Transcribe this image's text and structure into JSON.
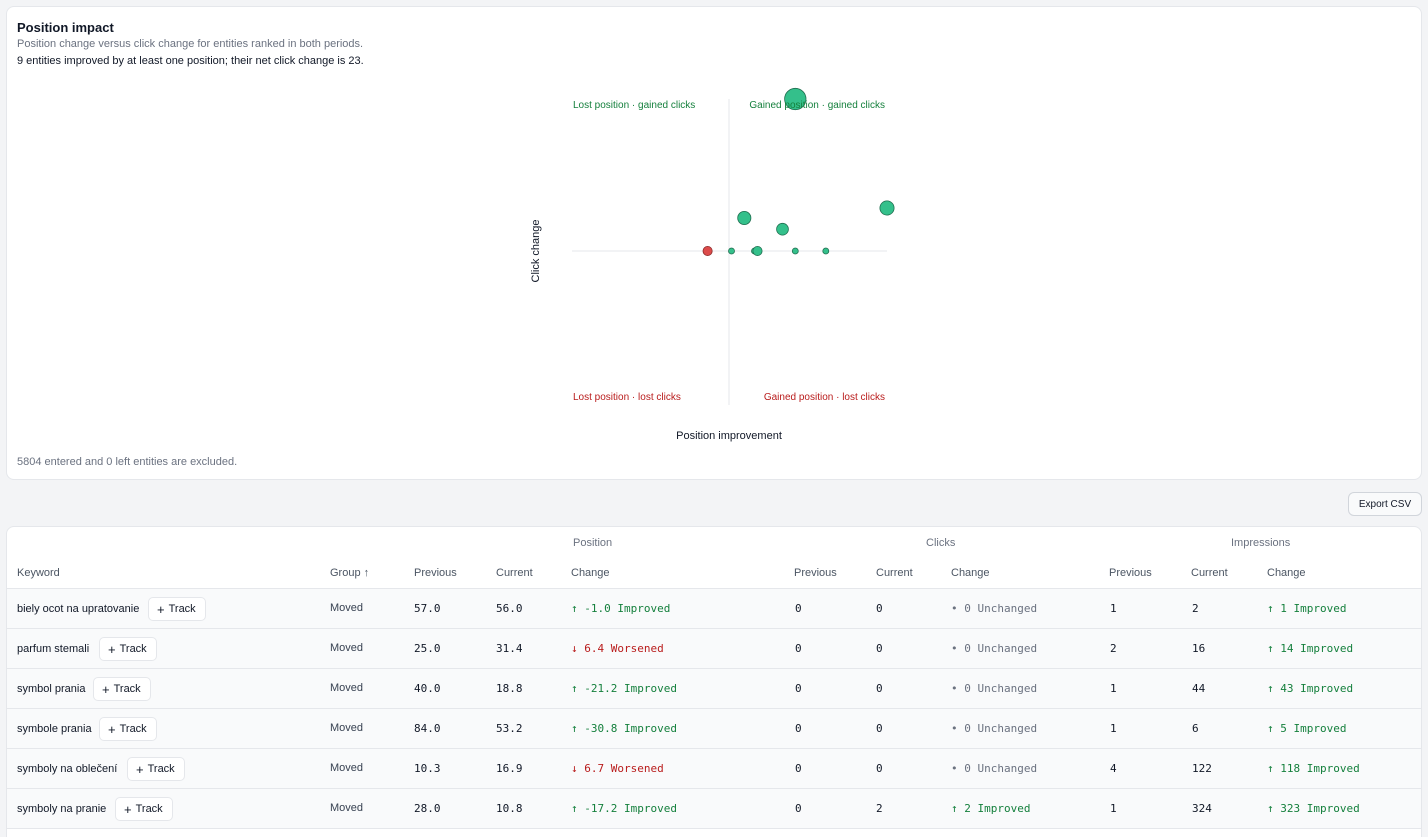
{
  "impact": {
    "title": "Position impact",
    "subtitle": "Position change versus click change for entities ranked in both periods.",
    "summary": "9 entities improved by at least one position; their net click change is 23.",
    "footnote": "5804 entered and 0 left entities are excluded.",
    "quadrants": {
      "top_left": "Lost position · gained clicks",
      "top_right": "Gained position · gained clicks",
      "bottom_left": "Lost position · lost clicks",
      "bottom_right": "Gained position · lost clicks"
    }
  },
  "colors": {
    "positive": "#34c08b",
    "negative": "#dc4b4b",
    "green_text": "#15803d",
    "red_text": "#b91c1c"
  },
  "chart_data": {
    "type": "scatter",
    "xlabel": "Position improvement",
    "ylabel": "Click change",
    "xlim": [
      -31,
      31
    ],
    "ylim": [
      -23,
      23
    ],
    "grid": false,
    "points": [
      {
        "x": 31,
        "y": 6.5,
        "size": 6.5,
        "kind": "positive"
      },
      {
        "x": 13,
        "y": 23,
        "size": 23,
        "kind": "positive"
      },
      {
        "x": 3,
        "y": 5,
        "size": 5,
        "kind": "positive"
      },
      {
        "x": 10.5,
        "y": 3.3,
        "size": 3.3,
        "kind": "positive"
      },
      {
        "x": 0.5,
        "y": 0,
        "size": 0,
        "kind": "positive"
      },
      {
        "x": 5,
        "y": 0,
        "size": 0,
        "kind": "positive"
      },
      {
        "x": 5.6,
        "y": 0,
        "size": 1,
        "kind": "positive"
      },
      {
        "x": 13,
        "y": 0,
        "size": 0,
        "kind": "positive"
      },
      {
        "x": 19,
        "y": 0,
        "size": 0,
        "kind": "positive"
      },
      {
        "x": -4.2,
        "y": 0,
        "size": 1,
        "kind": "negative"
      }
    ]
  },
  "toolbar": {
    "export_label": "Export CSV"
  },
  "table": {
    "groups": {
      "position": "Position",
      "clicks": "Clicks",
      "impressions": "Impressions"
    },
    "columns": {
      "keyword": "Keyword",
      "group": "Group ↑",
      "pos_prev": "Previous",
      "pos_cur": "Current",
      "pos_change": "Change",
      "clk_prev": "Previous",
      "clk_cur": "Current",
      "clk_change": "Change",
      "imp_prev": "Previous",
      "imp_cur": "Current",
      "imp_change": "Change"
    },
    "track_label": "Track",
    "rows": [
      {
        "keyword": "biely ocot na upratovanie",
        "group": "Moved",
        "pos_prev": "57.0",
        "pos_cur": "56.0",
        "pos_change": "↑ -1.0 Improved",
        "pos_status": "improved",
        "clk_prev": "0",
        "clk_cur": "0",
        "clk_change": "• 0 Unchanged",
        "clk_status": "unchanged",
        "imp_prev": "1",
        "imp_cur": "2",
        "imp_change": "↑ 1 Improved",
        "imp_status": "improved"
      },
      {
        "keyword": "parfum stemali",
        "group": "Moved",
        "pos_prev": "25.0",
        "pos_cur": "31.4",
        "pos_change": "↓ 6.4 Worsened",
        "pos_status": "worsened",
        "clk_prev": "0",
        "clk_cur": "0",
        "clk_change": "• 0 Unchanged",
        "clk_status": "unchanged",
        "imp_prev": "2",
        "imp_cur": "16",
        "imp_change": "↑ 14 Improved",
        "imp_status": "improved"
      },
      {
        "keyword": "symbol prania",
        "group": "Moved",
        "pos_prev": "40.0",
        "pos_cur": "18.8",
        "pos_change": "↑ -21.2 Improved",
        "pos_status": "improved",
        "clk_prev": "0",
        "clk_cur": "0",
        "clk_change": "• 0 Unchanged",
        "clk_status": "unchanged",
        "imp_prev": "1",
        "imp_cur": "44",
        "imp_change": "↑ 43 Improved",
        "imp_status": "improved"
      },
      {
        "keyword": "symbole prania",
        "group": "Moved",
        "pos_prev": "84.0",
        "pos_cur": "53.2",
        "pos_change": "↑ -30.8 Improved",
        "pos_status": "improved",
        "clk_prev": "0",
        "clk_cur": "0",
        "clk_change": "• 0 Unchanged",
        "clk_status": "unchanged",
        "imp_prev": "1",
        "imp_cur": "6",
        "imp_change": "↑ 5 Improved",
        "imp_status": "improved"
      },
      {
        "keyword": "symboly na oblečení",
        "group": "Moved",
        "pos_prev": "10.3",
        "pos_cur": "16.9",
        "pos_change": "↓ 6.7 Worsened",
        "pos_status": "worsened",
        "clk_prev": "0",
        "clk_cur": "0",
        "clk_change": "• 0 Unchanged",
        "clk_status": "unchanged",
        "imp_prev": "4",
        "imp_cur": "122",
        "imp_change": "↑ 118 Improved",
        "imp_status": "improved"
      },
      {
        "keyword": "symboly na pranie",
        "group": "Moved",
        "pos_prev": "28.0",
        "pos_cur": "10.8",
        "pos_change": "↑ -17.2 Improved",
        "pos_status": "improved",
        "clk_prev": "0",
        "clk_cur": "2",
        "clk_change": "↑ 2 Improved",
        "clk_status": "improved",
        "imp_prev": "1",
        "imp_cur": "324",
        "imp_change": "↑ 323 Improved",
        "imp_status": "improved"
      }
    ]
  }
}
